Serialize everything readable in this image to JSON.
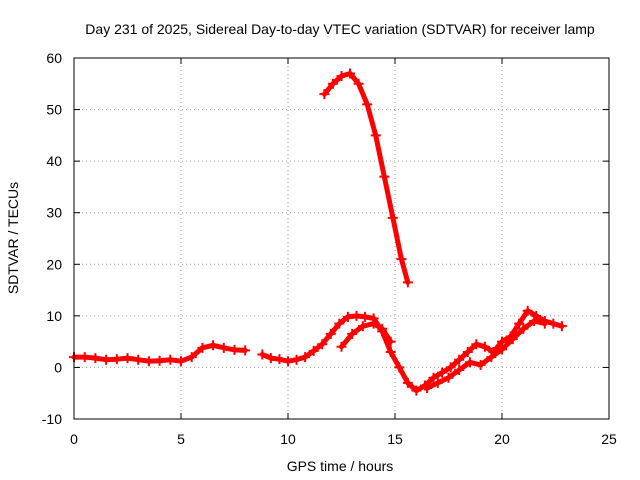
{
  "chart_data": {
    "type": "scatter",
    "title": "Day 231 of 2025, Sidereal Day-to-day VTEC variation (SDTVAR) for receiver lamp",
    "xlabel": "GPS time / hours",
    "ylabel": "SDTVAR / TECUs",
    "xlim": [
      0,
      25
    ],
    "ylim": [
      -10,
      60
    ],
    "xticks": [
      0,
      5,
      10,
      15,
      20,
      25
    ],
    "yticks": [
      -10,
      0,
      10,
      20,
      30,
      40,
      50,
      60
    ],
    "xtick_labels": [
      "0",
      "5",
      "10",
      "15",
      "20",
      "25"
    ],
    "ytick_labels": [
      "-10",
      "0",
      "10",
      "20",
      "30",
      "40",
      "50",
      "60"
    ],
    "grid": true,
    "marker": "plus",
    "color": "#ff0000",
    "series": [
      {
        "name": "trace-1",
        "x": [
          0,
          0.5,
          1,
          1.5,
          2,
          2.5,
          3,
          3.5,
          4,
          4.5,
          5,
          5.5,
          6,
          6.5,
          7,
          7.5,
          8
        ],
        "y": [
          2,
          2,
          1.8,
          1.5,
          1.6,
          1.8,
          1.5,
          1.2,
          1.3,
          1.5,
          1.2,
          2,
          3.8,
          4.3,
          3.8,
          3.4,
          3.3
        ]
      },
      {
        "name": "trace-2",
        "x": [
          8.8,
          9.2,
          9.6,
          10,
          10.4,
          10.8,
          11.2,
          11.6,
          12,
          12.4,
          12.8,
          13.2,
          13.6,
          14,
          14.4,
          14.8,
          15.2,
          15.6,
          16,
          16.4,
          16.8,
          17.2,
          17.6,
          18,
          18.4,
          18.8,
          19.2,
          19.6,
          20,
          20.4,
          20.8,
          21.2,
          21.6,
          22,
          22.4,
          22.8
        ],
        "y": [
          2.5,
          1.8,
          1.6,
          1.2,
          1.5,
          2,
          3.2,
          4.5,
          6.5,
          8.5,
          9.8,
          10,
          9.8,
          9.5,
          7,
          3,
          0,
          -3,
          -4.5,
          -3.5,
          -2,
          -1,
          0,
          1.5,
          3,
          4.5,
          4,
          3,
          5,
          6,
          8.5,
          11,
          10,
          9,
          8.5,
          8
        ]
      },
      {
        "name": "trace-3",
        "x": [
          12.5,
          13,
          13.5,
          14,
          14.4,
          14.8
        ],
        "y": [
          4,
          6.5,
          8,
          8.5,
          7.5,
          5
        ]
      },
      {
        "name": "trace-4",
        "x": [
          16.5,
          17,
          17.5,
          18,
          18.5,
          19,
          19.5,
          20,
          20.5,
          21,
          21.5,
          22
        ],
        "y": [
          -4,
          -3,
          -2,
          -0.5,
          1,
          0.5,
          2,
          3.5,
          5.5,
          7.5,
          9,
          8.5
        ]
      },
      {
        "name": "trace-5",
        "x": [
          11.7,
          12.1,
          12.5,
          12.9,
          13.3,
          13.7,
          14.1,
          14.5,
          14.9,
          15.3,
          15.6
        ],
        "y": [
          53,
          55,
          56.5,
          57,
          55,
          51,
          45,
          37,
          29,
          21,
          16.5
        ]
      }
    ]
  }
}
